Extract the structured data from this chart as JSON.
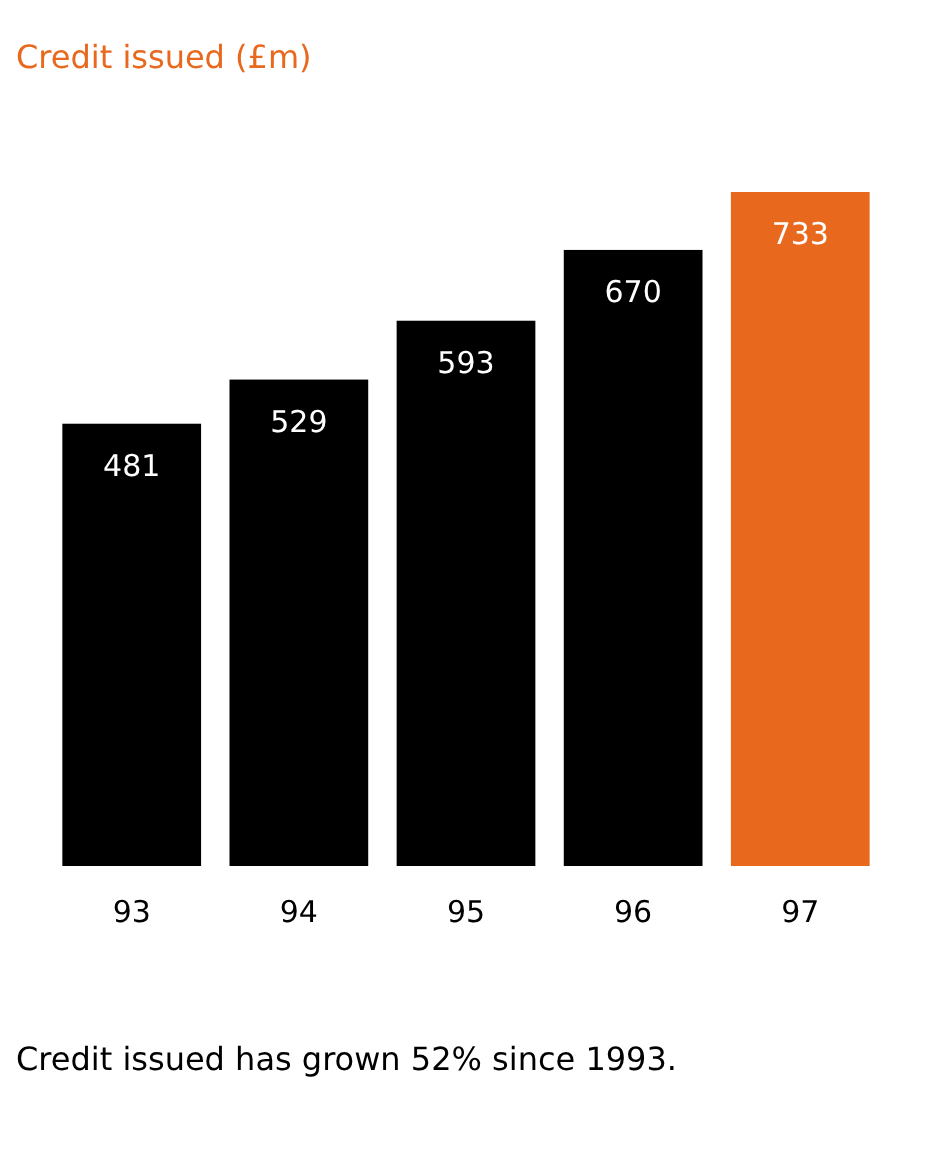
{
  "chart_data": {
    "type": "bar",
    "title": "Credit issued (£m)",
    "categories": [
      "93",
      "94",
      "95",
      "96",
      "97"
    ],
    "values": [
      481,
      529,
      593,
      670,
      733
    ],
    "colors": [
      "#000000",
      "#000000",
      "#000000",
      "#000000",
      "#e8691e"
    ],
    "data_labels": true,
    "annotations": [
      "Credit issued has grown 52% since 1993."
    ]
  }
}
